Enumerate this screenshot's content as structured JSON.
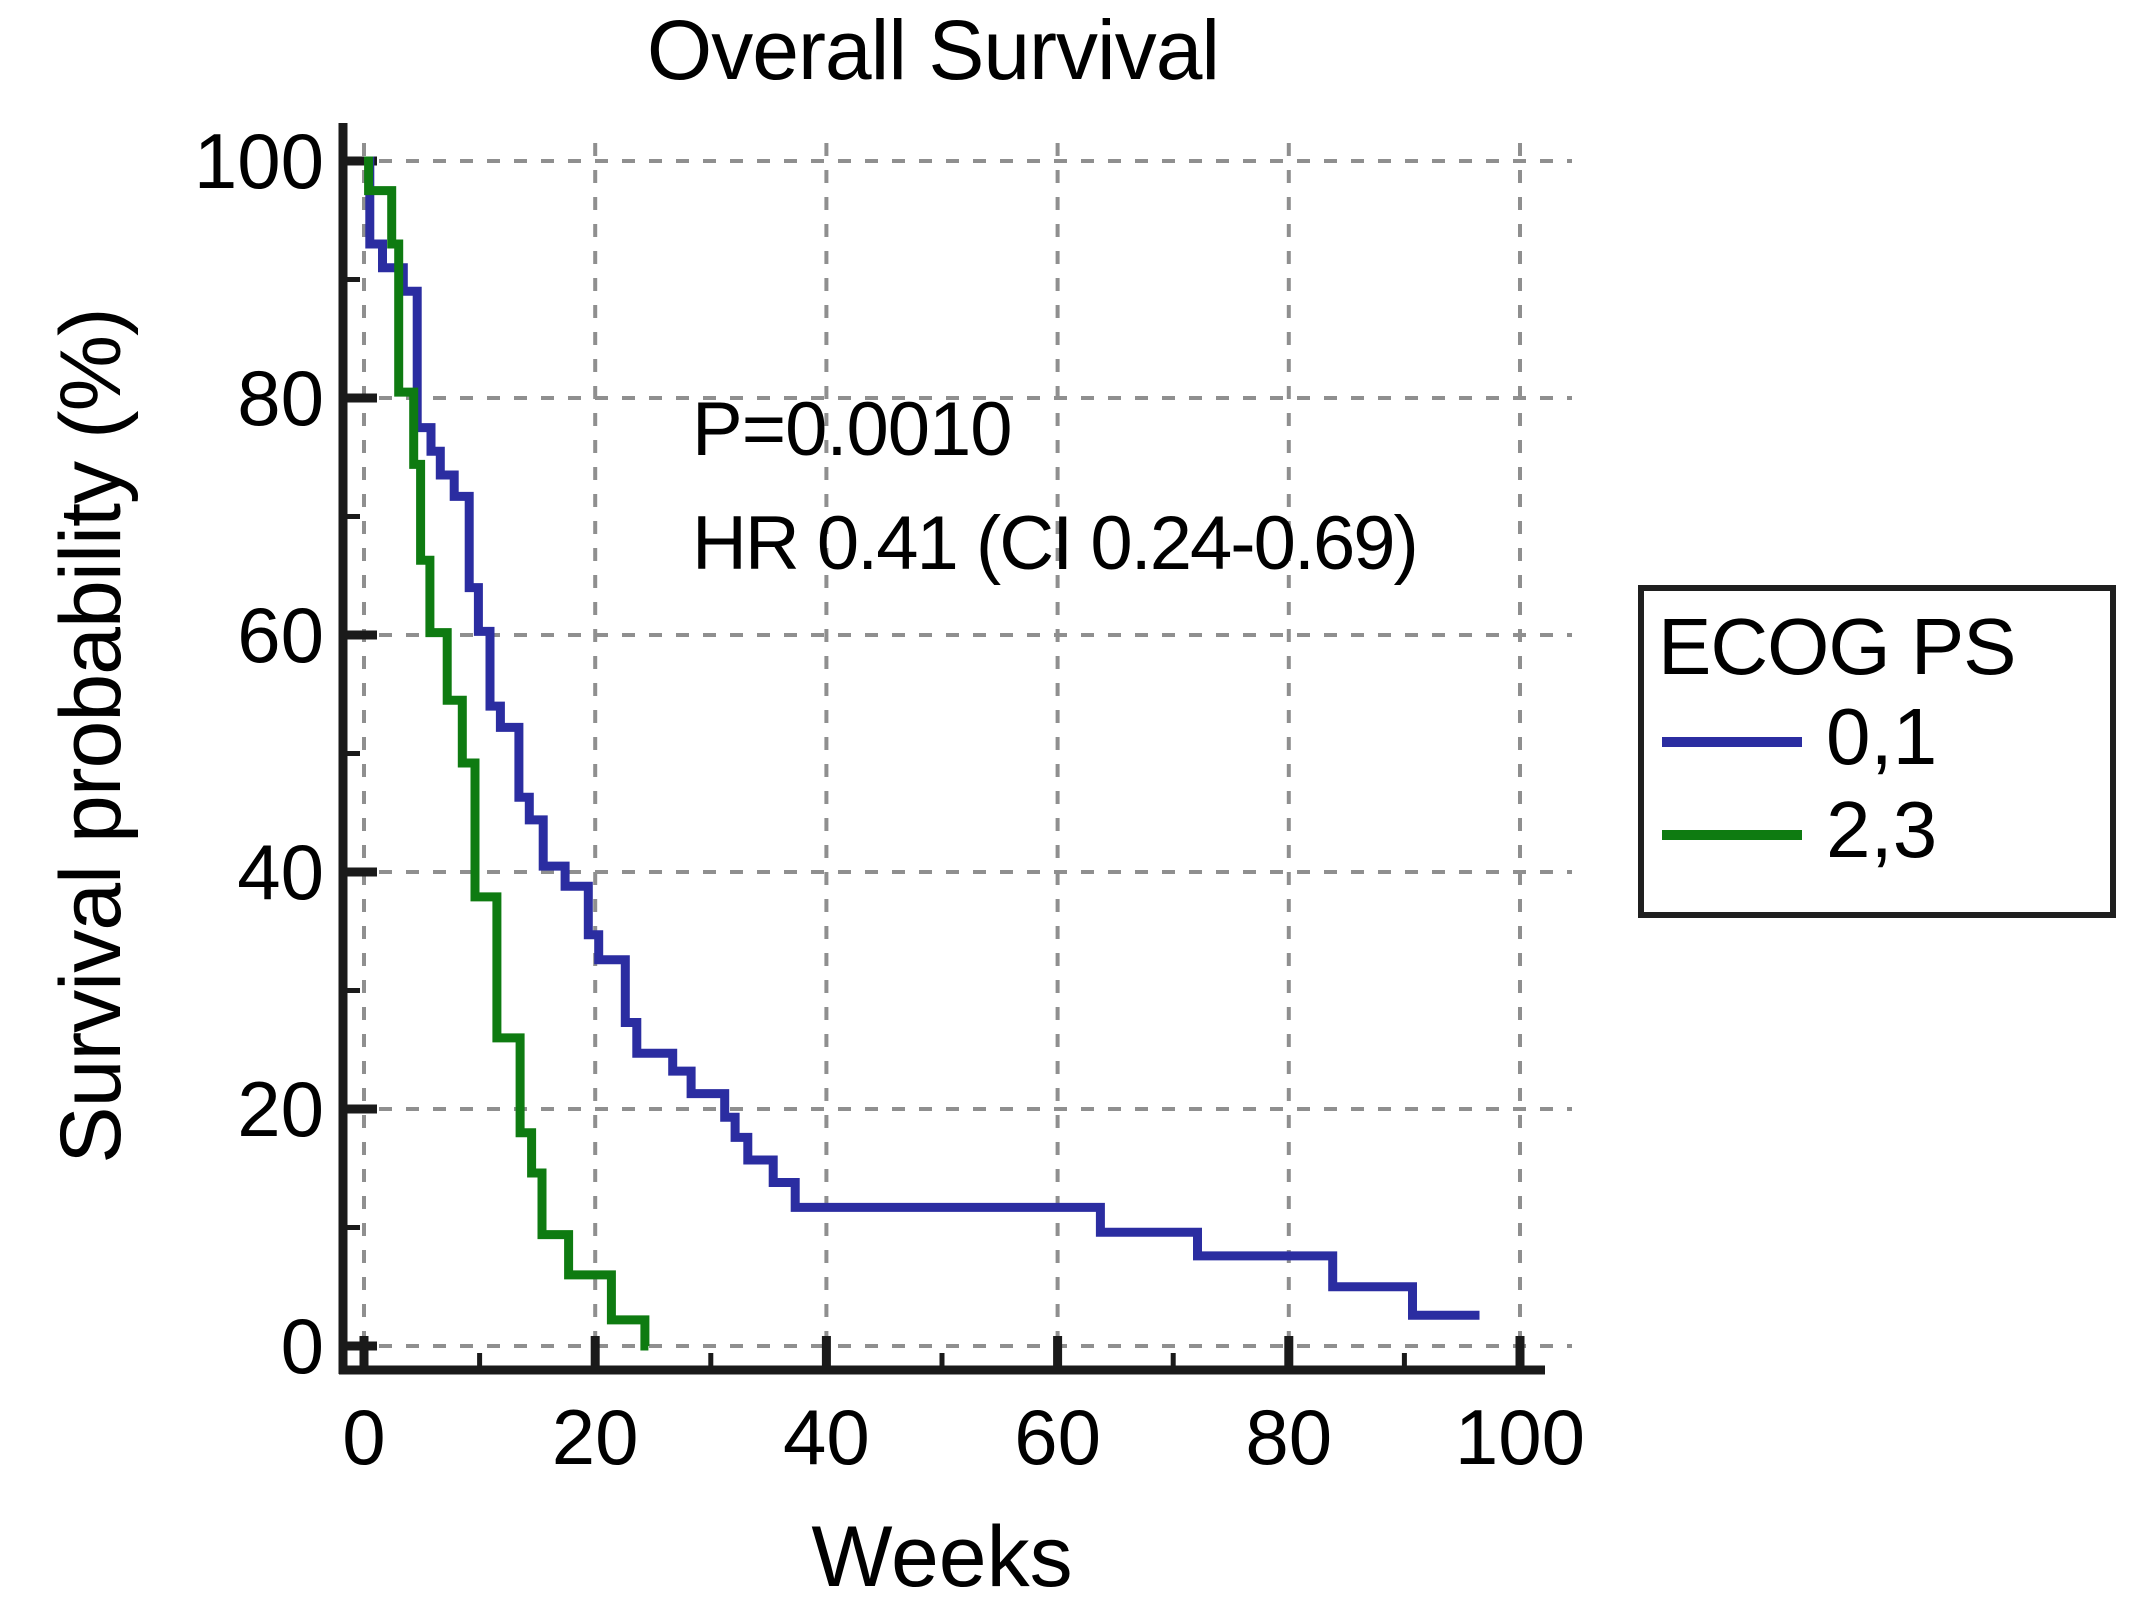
{
  "header": {
    "title": "Overall Survival"
  },
  "annotations": {
    "p_value": "P=0.0010",
    "hazard_ratio": "HR 0.41 (CI 0.24-0.69)"
  },
  "legend": {
    "title": "ECOG PS",
    "entries": [
      {
        "label": "0,1",
        "color": "#2b2da1"
      },
      {
        "label": "2,3",
        "color": "#0e7b11"
      }
    ]
  },
  "colors": {
    "axis": "#1a1a1a",
    "grid": "#8f8f8f",
    "series_blue": "#2b2da1",
    "series_green": "#0e7b11"
  },
  "chart_data": {
    "type": "line",
    "subtype": "kaplan-meier-step",
    "title": "Overall Survival",
    "xlabel": "Weeks",
    "ylabel": "Survival probability (%)",
    "xlim": [
      0,
      100
    ],
    "ylim": [
      0,
      100
    ],
    "x_ticks": [
      0,
      20,
      40,
      60,
      80,
      100
    ],
    "y_ticks": [
      0,
      20,
      40,
      60,
      80,
      100
    ],
    "x_minor_ticks": [
      10,
      30,
      50,
      70,
      90
    ],
    "y_minor_ticks": [
      10,
      30,
      50,
      70,
      90
    ],
    "grid": true,
    "legend_position": "right",
    "series": [
      {
        "name": "0,1",
        "color": "#2b2da1",
        "start_value": 100,
        "steps": [
          [
            0.5,
            93
          ],
          [
            1.6,
            91
          ],
          [
            3.4,
            89
          ],
          [
            4.6,
            77.5
          ],
          [
            5.8,
            75.5
          ],
          [
            6.6,
            73.5
          ],
          [
            7.8,
            71.7
          ],
          [
            9.1,
            64
          ],
          [
            9.9,
            60.3
          ],
          [
            10.9,
            54
          ],
          [
            11.8,
            52.2
          ],
          [
            13.4,
            46.3
          ],
          [
            14.3,
            44.4
          ],
          [
            15.5,
            40.5
          ],
          [
            17.4,
            38.8
          ],
          [
            19.4,
            34.7
          ],
          [
            20.3,
            32.6
          ],
          [
            22.6,
            27.3
          ],
          [
            23.6,
            24.7
          ],
          [
            26.7,
            23.2
          ],
          [
            28.3,
            21.3
          ],
          [
            31.2,
            19.3
          ],
          [
            32.1,
            17.6
          ],
          [
            33.2,
            15.7
          ],
          [
            35.4,
            13.8
          ],
          [
            37.3,
            11.7
          ],
          [
            63.7,
            9.6
          ],
          [
            72.1,
            7.6
          ],
          [
            83.8,
            5.0
          ],
          [
            90.7,
            2.6
          ]
        ],
        "end_time": 96.5
      },
      {
        "name": "2,3",
        "color": "#0e7b11",
        "start_value": 100,
        "steps": [
          [
            0.4,
            97.5
          ],
          [
            2.4,
            93
          ],
          [
            3.0,
            80.5
          ],
          [
            4.3,
            74.4
          ],
          [
            4.9,
            66.3
          ],
          [
            5.7,
            60.2
          ],
          [
            7.2,
            54.5
          ],
          [
            8.5,
            49.2
          ],
          [
            9.6,
            37.9
          ],
          [
            11.5,
            26.0
          ],
          [
            13.5,
            18.0
          ],
          [
            14.5,
            14.6
          ],
          [
            15.4,
            9.4
          ],
          [
            17.7,
            6.0
          ],
          [
            21.4,
            2.2
          ],
          [
            24.3,
            0
          ]
        ],
        "end_time": 24.6
      }
    ]
  }
}
